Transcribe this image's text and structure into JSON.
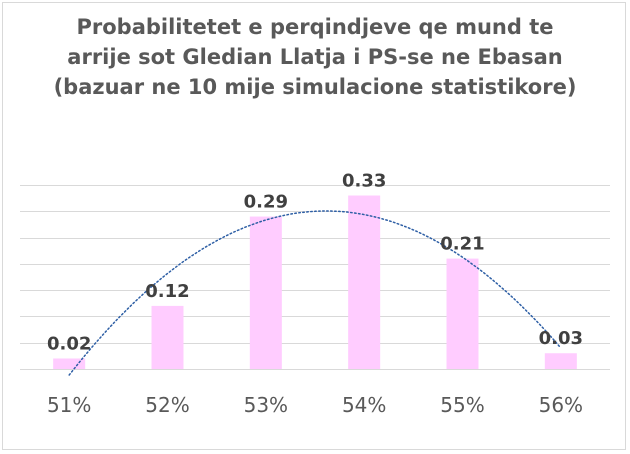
{
  "chart_data": {
    "type": "bar",
    "title_lines": [
      "Probabilitetet e perqindjeve qe mund te",
      "arrije sot Gledian Llatja i PS-se ne Ebasan",
      "(bazuar ne 10 mije simulacione statistikore)"
    ],
    "categories": [
      "51%",
      "52%",
      "53%",
      "54%",
      "55%",
      "56%"
    ],
    "values": [
      0.02,
      0.12,
      0.29,
      0.33,
      0.21,
      0.03
    ],
    "data_labels": [
      "0.02",
      "0.12",
      "0.29",
      "0.33",
      "0.21",
      "0.03"
    ],
    "ylim": [
      0,
      0.35
    ],
    "grid": true,
    "trendline": {
      "type": "polynomial",
      "style": "dotted"
    },
    "colors": {
      "bar": "#ffccff",
      "trend": "#2e5fa5",
      "grid": "#d9d9d9",
      "text": "#595959"
    }
  }
}
